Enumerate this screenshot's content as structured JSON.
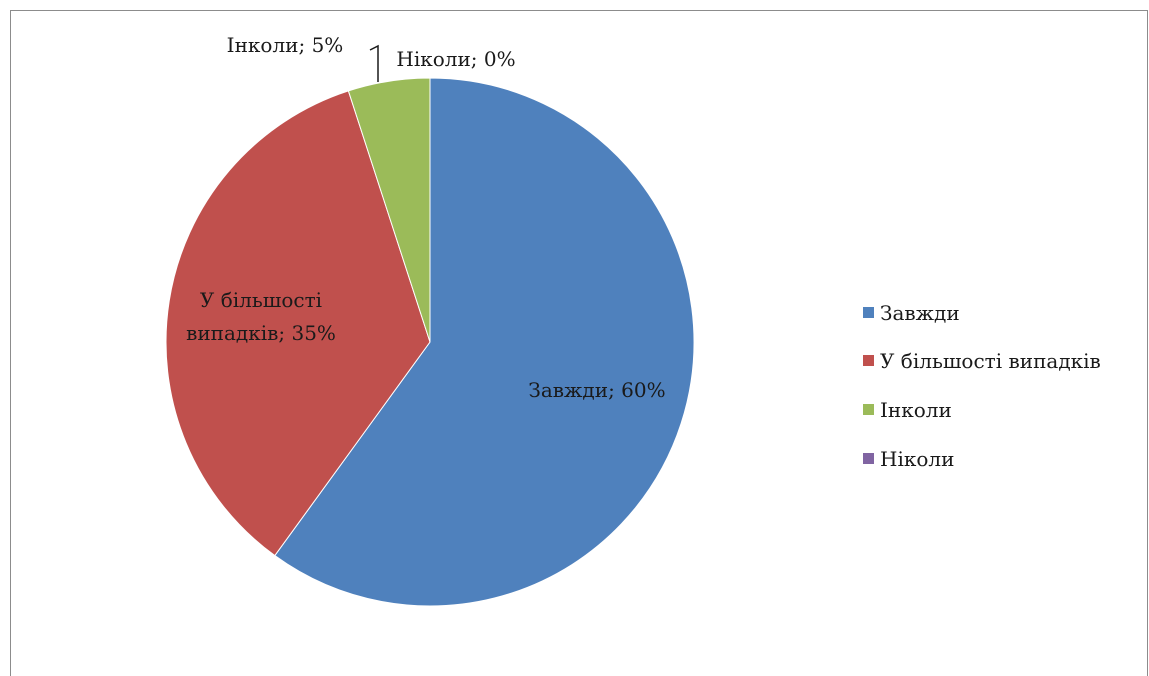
{
  "chart_data": {
    "type": "pie",
    "title": "",
    "series": [
      {
        "name": "",
        "categories": [
          "Завжди",
          "У більшості випадків",
          "Інколи",
          "Ніколи"
        ],
        "values": [
          60,
          35,
          5,
          0
        ]
      }
    ],
    "slices": [
      {
        "label": "Завжди",
        "value": 60,
        "color": "#4f81bd",
        "data_label": "Завжди; 60%"
      },
      {
        "label": "У більшості випадків",
        "value": 35,
        "color": "#c0504d",
        "data_label_line1": "У більшості",
        "data_label_line2": "випадків; 35%"
      },
      {
        "label": "Інколи",
        "value": 5,
        "color": "#9bbb59",
        "data_label": "Інколи; 5%"
      },
      {
        "label": "Ніколи",
        "value": 0,
        "color": "#8064a2",
        "data_label": "Ніколи; 0%"
      }
    ],
    "legend": {
      "position": "right",
      "entries": [
        "Завжди",
        "У більшості випадків",
        "Інколи",
        "Ніколи"
      ]
    },
    "unit": "%"
  }
}
